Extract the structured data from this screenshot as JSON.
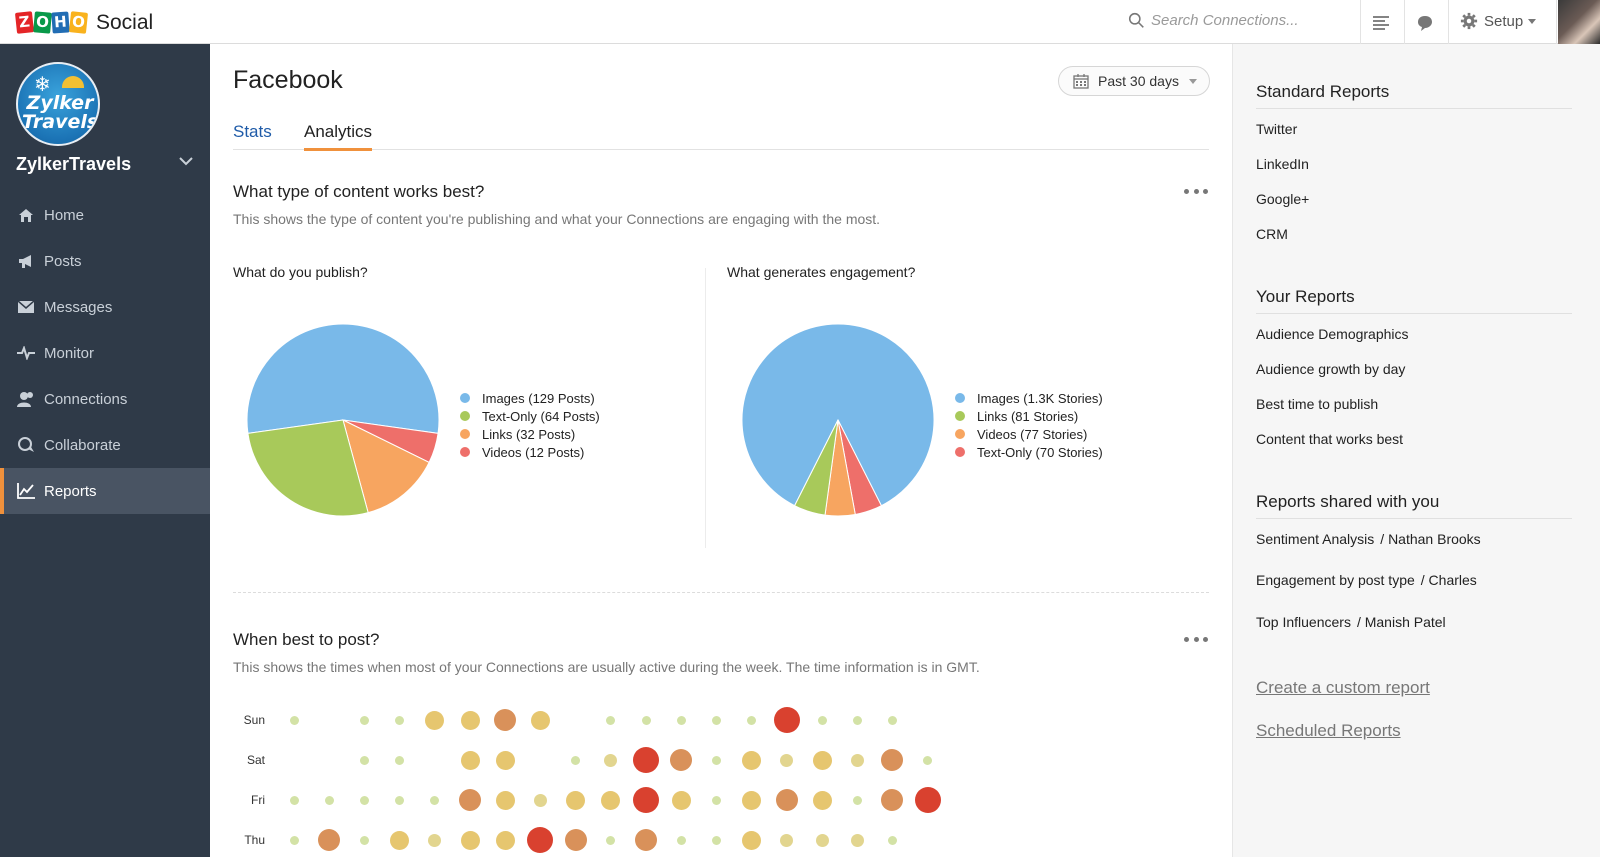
{
  "topbar": {
    "logo_letters": [
      "Z",
      "O",
      "H",
      "O"
    ],
    "app_name": "Social",
    "search_placeholder": "Search Connections...",
    "setup_label": "Setup",
    "icons": [
      "search-icon",
      "menu-lines-icon",
      "chat-bubble-icon",
      "gear-icon",
      "user-avatar"
    ]
  },
  "sidebar": {
    "brand_logo_text": "Zylker Travels",
    "brand_name": "ZylkerTravels",
    "items": [
      {
        "label": "Home",
        "icon": "home-icon",
        "active": false
      },
      {
        "label": "Posts",
        "icon": "megaphone-icon",
        "active": false
      },
      {
        "label": "Messages",
        "icon": "envelope-icon",
        "active": false
      },
      {
        "label": "Monitor",
        "icon": "pulse-icon",
        "active": false
      },
      {
        "label": "Connections",
        "icon": "people-icon",
        "active": false
      },
      {
        "label": "Collaborate",
        "icon": "collaborate-icon",
        "active": false
      },
      {
        "label": "Reports",
        "icon": "chart-line-icon",
        "active": true
      }
    ]
  },
  "main": {
    "title": "Facebook",
    "date_range": "Past 30 days",
    "tabs": [
      {
        "label": "Stats",
        "active": false
      },
      {
        "label": "Analytics",
        "active": true
      }
    ],
    "content_section": {
      "title": "What type of content works best?",
      "description": "This shows the type of content you're publishing and what your Connections are engaging with the most."
    },
    "time_section": {
      "title": "When best to post?",
      "description": "This shows the times when most of your Connections are usually active during the week. The time information is in GMT."
    }
  },
  "chart_data": [
    {
      "type": "pie",
      "title": "What do you publish?",
      "categories": [
        "Images (129 Posts)",
        "Text-Only (64 Posts)",
        "Links (32 Posts)",
        "Videos (12 Posts)"
      ],
      "values": [
        129,
        64,
        32,
        12
      ],
      "colors": [
        "#79b9e9",
        "#a8c95a",
        "#f7a560",
        "#ee6f6a"
      ],
      "legend_position": "right"
    },
    {
      "type": "pie",
      "title": "What generates engagement?",
      "categories": [
        "Images (1.3K Stories)",
        "Links (81 Stories)",
        "Videos (77 Stories)",
        "Text-Only (70 Stories)"
      ],
      "values": [
        1300,
        81,
        77,
        70
      ],
      "colors": [
        "#79b9e9",
        "#a8c95a",
        "#f7a560",
        "#ee6f6a"
      ],
      "legend_position": "right"
    },
    {
      "type": "heatmap",
      "rows": [
        "Sun",
        "Sat",
        "Fri",
        "Thu"
      ],
      "columns": 20,
      "scale": "activity level 0-5",
      "values": [
        [
          1,
          0,
          1,
          1,
          3,
          3,
          4,
          3,
          0,
          1,
          1,
          1,
          1,
          1,
          5,
          1,
          1,
          1,
          0,
          0
        ],
        [
          0,
          0,
          1,
          1,
          0,
          3,
          3,
          0,
          1,
          2,
          5,
          4,
          1,
          3,
          2,
          3,
          2,
          4,
          1,
          0
        ],
        [
          1,
          1,
          1,
          1,
          1,
          4,
          3,
          2,
          3,
          3,
          5,
          3,
          1,
          3,
          4,
          3,
          1,
          4,
          5,
          0
        ],
        [
          1,
          4,
          1,
          3,
          2,
          3,
          3,
          5,
          4,
          1,
          4,
          1,
          1,
          3,
          2,
          2,
          2,
          1,
          0,
          0
        ]
      ]
    }
  ],
  "right_panel": {
    "standard_title": "Standard Reports",
    "standard_items": [
      "Twitter",
      "LinkedIn",
      "Google+",
      "CRM"
    ],
    "your_title": "Your Reports",
    "your_items": [
      "Audience Demographics",
      "Audience growth by day",
      "Best time to publish",
      "Content that works best"
    ],
    "shared_title": "Reports shared with you",
    "shared_items": [
      {
        "name": "Sentiment Analysis",
        "owner": "/ Nathan Brooks"
      },
      {
        "name": "Engagement by post type",
        "owner": "/ Charles"
      },
      {
        "name": "Top Influencers",
        "owner": "/ Manish Patel"
      }
    ],
    "create_link": "Create a custom report",
    "scheduled_link": "Scheduled Reports"
  },
  "colors": {
    "sidebar_bg": "#2f3a48",
    "active_accent": "#f0913c",
    "link_blue": "#1f5ba8"
  }
}
